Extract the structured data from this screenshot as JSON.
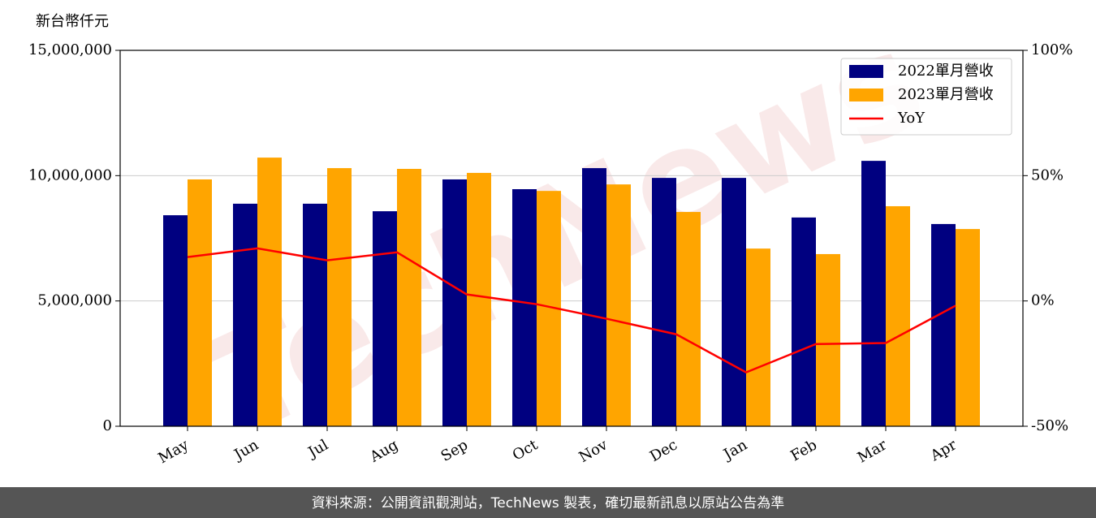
{
  "chart_data": {
    "type": "bar",
    "ylabel": "新台幣仟元",
    "watermark": "TechNews",
    "source": "資料來源：公開資訊觀測站，TechNews 製表，確切最新訊息以原站公告為準",
    "categories": [
      "May",
      "Jun",
      "Jul",
      "Aug",
      "Sep",
      "Oct",
      "Nov",
      "Dec",
      "Jan",
      "Feb",
      "Mar",
      "Apr"
    ],
    "series": [
      {
        "name": "2022單月營收",
        "color": "#000080",
        "values": [
          8420000,
          8880000,
          8880000,
          8580000,
          9850000,
          9460000,
          10300000,
          9910000,
          9910000,
          8330000,
          10590000,
          8070000
        ]
      },
      {
        "name": "2023單月營收",
        "color": "#ffa500",
        "values": [
          9850000,
          10720000,
          10300000,
          10270000,
          10110000,
          9390000,
          9650000,
          8550000,
          7090000,
          6870000,
          8780000,
          7870000
        ]
      },
      {
        "name": "YoY",
        "color": "#ff0000",
        "type": "line",
        "axis": "y2",
        "values": [
          17.5,
          21,
          16.2,
          19.4,
          2.6,
          -1.3,
          -7.1,
          -13.3,
          -28.5,
          -17.2,
          -16.8,
          -1.9
        ]
      }
    ],
    "ylim": [
      0,
      15000000
    ],
    "yticks": [
      0,
      {
        "value": 5000000,
        "label": "5,000,000"
      },
      {
        "value": 10000000,
        "label": "10,000,000"
      },
      {
        "value": 15000000,
        "label": "15,000,000"
      }
    ],
    "y2lim": [
      -50,
      100
    ],
    "y2ticks": [
      {
        "value": -50,
        "label": "-50%"
      },
      {
        "value": 0,
        "label": "0%"
      },
      {
        "value": 50,
        "label": "50%"
      },
      {
        "value": 100,
        "label": "100%"
      }
    ],
    "grid": true,
    "legend": "upper right"
  }
}
